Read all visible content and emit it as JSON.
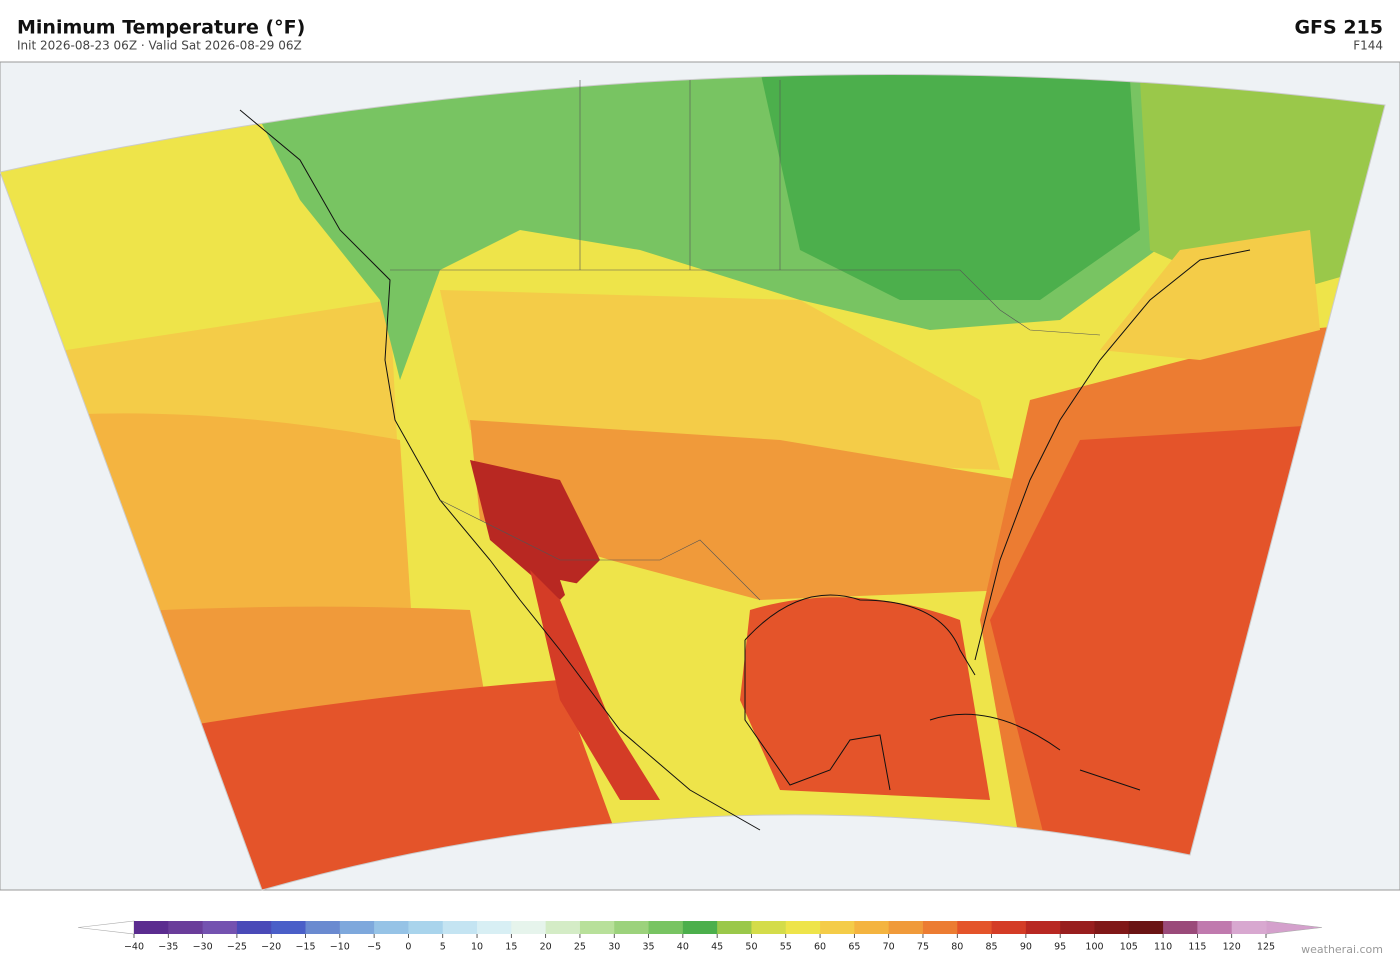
{
  "header": {
    "title": "Minimum Temperature  (°F)",
    "subtitle": "Init 2026-08-23 06Z  ·  Valid Sat 2026-08-29 06Z",
    "model": "GFS  215",
    "forecast_hour": "F144"
  },
  "colorbar": {
    "ticks": [
      {
        "value": -40,
        "label": "−40"
      },
      {
        "value": -35,
        "label": "−35"
      },
      {
        "value": -30,
        "label": "−30"
      },
      {
        "value": -25,
        "label": "−25"
      },
      {
        "value": -20,
        "label": "−20"
      },
      {
        "value": -15,
        "label": "−15"
      },
      {
        "value": -10,
        "label": "−10"
      },
      {
        "value": -5,
        "label": "−5"
      },
      0,
      5,
      10,
      15,
      20,
      25,
      30,
      35,
      40,
      45,
      50,
      55,
      60,
      65,
      70,
      75,
      80,
      85,
      90,
      95,
      100,
      105,
      110,
      115,
      120,
      125
    ],
    "colors": [
      "#5b2c8f",
      "#6a3d9a",
      "#7452b0",
      "#4a4ab8",
      "#4a5fc8",
      "#6a8ad0",
      "#7ea8dc",
      "#96c3e6",
      "#a9d4ec",
      "#c4e4f2",
      "#d8eff4",
      "#e6f4ec",
      "#d4ecc6",
      "#b8e09a",
      "#9cd27c",
      "#78c462",
      "#4caf4c",
      "#9ac84a",
      "#d4dc4a",
      "#eee44a",
      "#f4cc48",
      "#f4b440",
      "#f09a3a",
      "#ec7c32",
      "#e4542a",
      "#d43c26",
      "#b82822",
      "#981e1e",
      "#801818",
      "#6a1414",
      "#9a4a7a",
      "#c07aae",
      "#d8a8d0"
    ],
    "under_color": "#ffffff",
    "over_color": "#d4a0cc"
  },
  "footer": {
    "credit": "weatherai.com"
  }
}
